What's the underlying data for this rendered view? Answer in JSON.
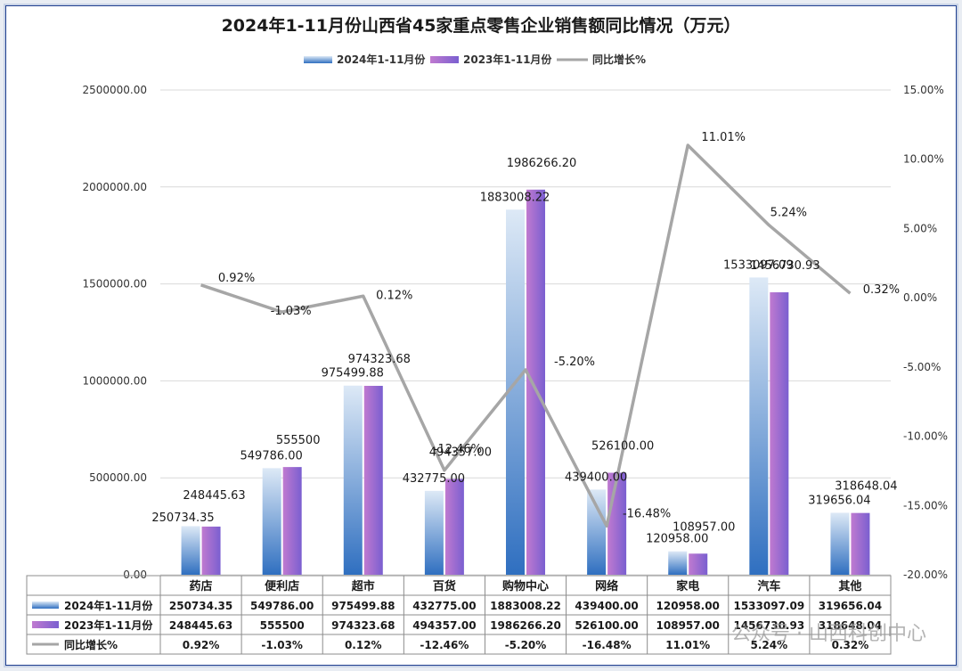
{
  "chart_data": {
    "type": "bar",
    "title": "2024年1-11月份山西省45家重点零售企业销售额同比情况（万元）",
    "categories": [
      "药店",
      "便利店",
      "超市",
      "百货",
      "购物中心",
      "网络",
      "家电",
      "汽车",
      "其他"
    ],
    "series": [
      {
        "name": "2024年1-11月份",
        "type": "bar",
        "axis": "left",
        "values": [
          250734.35,
          549786.0,
          975499.88,
          432775.0,
          1883008.22,
          439400.0,
          120958.0,
          1533097.09,
          319656.04
        ],
        "labels": [
          "250734.35",
          "549786.00",
          "975499.88",
          "432775.00",
          "1883008.22",
          "439400.00",
          "120958.00",
          "1533097.09",
          "319656.04"
        ]
      },
      {
        "name": "2023年1-11月份",
        "type": "bar",
        "axis": "left",
        "values": [
          248445.63,
          555500,
          974323.68,
          494357.0,
          1986266.2,
          526100.0,
          108957.0,
          1456730.93,
          318648.04
        ],
        "labels": [
          "248445.63",
          "555500",
          "974323.68",
          "494357.00",
          "1986266.20",
          "526100.00",
          "108957.00",
          "1456730.93",
          "318648.04"
        ]
      },
      {
        "name": "同比增长%",
        "type": "line",
        "axis": "right",
        "values": [
          0.92,
          -1.03,
          0.12,
          -12.46,
          -5.2,
          -16.48,
          11.01,
          5.24,
          0.32
        ],
        "labels": [
          "0.92%",
          "-1.03%",
          "0.12%",
          "-12.46%",
          "-5.20%",
          "-16.48%",
          "11.01%",
          "5.24%",
          "0.32%"
        ]
      }
    ],
    "y_left": {
      "min": 0,
      "max": 2500000,
      "ticks": [
        "0.00",
        "500000.00",
        "1000000.00",
        "1500000.00",
        "2000000.00",
        "2500000.00"
      ]
    },
    "y_right": {
      "min": -20,
      "max": 15,
      "ticks": [
        "-20.00%",
        "-15.00%",
        "-10.00%",
        "-5.00%",
        "0.00%",
        "5.00%",
        "10.00%",
        "15.00%"
      ]
    },
    "legend_position": "top",
    "grid": true,
    "data_table": {
      "rows": [
        {
          "label": "2024年1-11月份",
          "values": [
            "250734.35",
            "549786.00",
            "975499.88",
            "432775.00",
            "1883008.22",
            "439400.00",
            "120958.00",
            "1533097.09",
            "319656.04"
          ]
        },
        {
          "label": "2023年1-11月份",
          "values": [
            "248445.63",
            "555500",
            "974323.68",
            "494357.00",
            "1986266.20",
            "526100.00",
            "108957.00",
            "1456730.93",
            "318648.04"
          ]
        },
        {
          "label": "同比增长%",
          "values": [
            "0.92%",
            "-1.03%",
            "0.12%",
            "-12.46%",
            "-5.20%",
            "-16.48%",
            "11.01%",
            "5.24%",
            "0.32%"
          ]
        }
      ]
    }
  },
  "watermark": "公众号 · 山西科创中心",
  "colors": {
    "bar2024_top": "#dde9f6",
    "bar2024_bottom": "#2f6fc0",
    "bar2023_left": "#c07ad0",
    "bar2023_right": "#7a5fd0",
    "line": "#a6a6a6",
    "grid": "#d9d9d9",
    "title": "#1a1a1a"
  }
}
